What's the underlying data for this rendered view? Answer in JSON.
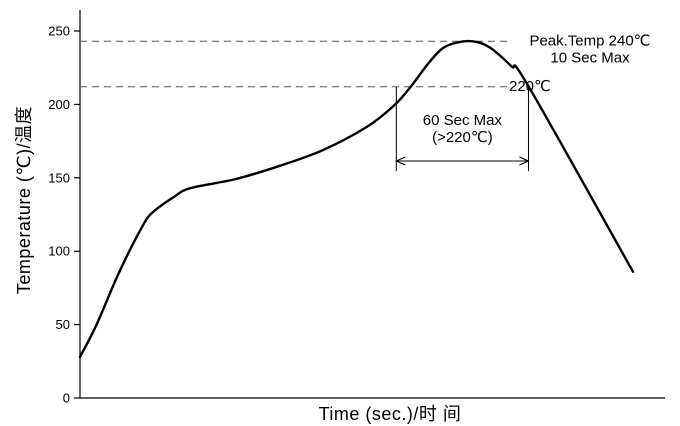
{
  "chart_data": {
    "type": "line",
    "title": "",
    "xlabel": "Time (sec.)/时 间",
    "ylabel": "Temperature (℃)/温度",
    "ylim": [
      0,
      250
    ],
    "yticks": [
      0,
      50,
      100,
      150,
      200,
      250
    ],
    "grid": false,
    "series": [
      {
        "points": [
          {
            "t": 0,
            "temp": 28
          },
          {
            "t": 3,
            "temp": 50
          },
          {
            "t": 7,
            "temp": 85
          },
          {
            "t": 11,
            "temp": 115
          },
          {
            "t": 13,
            "temp": 126
          },
          {
            "t": 17,
            "temp": 137
          },
          {
            "t": 20,
            "temp": 143
          },
          {
            "t": 28,
            "temp": 149
          },
          {
            "t": 36,
            "temp": 158
          },
          {
            "t": 44,
            "temp": 169
          },
          {
            "t": 52,
            "temp": 185
          },
          {
            "t": 57,
            "temp": 200
          },
          {
            "t": 60,
            "temp": 213
          },
          {
            "t": 63,
            "temp": 228
          },
          {
            "t": 65.5,
            "temp": 238
          },
          {
            "t": 68,
            "temp": 242
          },
          {
            "t": 71,
            "temp": 243
          },
          {
            "t": 74,
            "temp": 239
          },
          {
            "t": 78,
            "temp": 226
          },
          {
            "t": 81,
            "temp": 213
          },
          {
            "t": 100,
            "temp": 86
          }
        ]
      }
    ],
    "reference_lines": [
      {
        "temp": 243,
        "label_lines": [
          "Peak.Temp 240℃",
          "10 Sec Max"
        ]
      },
      {
        "temp": 212,
        "label_lines": [
          "220℃"
        ]
      }
    ],
    "interval_annotation": {
      "t_start": 57.2,
      "t_end": 81.1,
      "label_lines": [
        "60 Sec Max",
        "(>220℃)"
      ]
    }
  }
}
